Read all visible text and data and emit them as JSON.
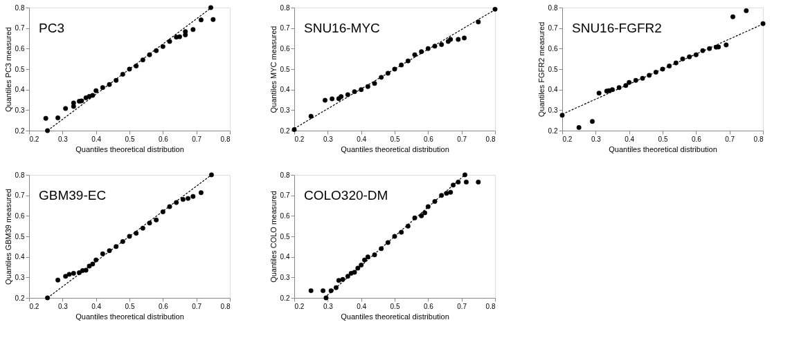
{
  "chart_data": [
    {
      "type": "scatter",
      "xlabel": "Quantiles theoretical distribution",
      "ylabel": "Quantiles PC3 measured",
      "annotations": [
        "PC3"
      ],
      "xlim": [
        0.2,
        0.8
      ],
      "ylim": [
        0.2,
        0.8
      ],
      "xticks": [
        0.2,
        0.3,
        0.4,
        0.5,
        0.6,
        0.7,
        0.8
      ],
      "yticks": [
        0.2,
        0.3,
        0.4,
        0.5,
        0.6,
        0.7,
        0.8
      ],
      "grid": false,
      "series": [
        {
          "marker": "circle",
          "color": "#000000",
          "x": [
            0.25,
            0.255,
            0.286,
            0.309,
            0.333,
            0.333,
            0.35,
            0.357,
            0.37,
            0.38,
            0.39,
            0.4,
            0.42,
            0.44,
            0.46,
            0.48,
            0.5,
            0.52,
            0.54,
            0.56,
            0.58,
            0.6,
            0.62,
            0.64,
            0.65,
            0.667,
            0.667,
            0.69,
            0.714,
            0.743,
            0.75
          ],
          "values": [
            0.26,
            0.2,
            0.262,
            0.308,
            0.318,
            0.335,
            0.343,
            0.345,
            0.36,
            0.367,
            0.372,
            0.395,
            0.41,
            0.425,
            0.445,
            0.475,
            0.5,
            0.515,
            0.545,
            0.57,
            0.59,
            0.61,
            0.635,
            0.656,
            0.658,
            0.667,
            0.683,
            0.693,
            0.74,
            0.8,
            0.742
          ]
        },
        {
          "type": "line",
          "line_style": "dashed",
          "color": "#000000",
          "x": [
            0.255,
            0.745
          ],
          "values": [
            0.2,
            0.8
          ]
        }
      ]
    },
    {
      "type": "scatter",
      "xlabel": "Quantiles theoretical distribution",
      "ylabel": "Quantiles MYC measured",
      "annotations": [
        "SNU16-MYC"
      ],
      "xlim": [
        0.2,
        0.8
      ],
      "ylim": [
        0.2,
        0.8
      ],
      "xticks": [
        0.2,
        0.3,
        0.4,
        0.5,
        0.6,
        0.7,
        0.8
      ],
      "yticks": [
        0.2,
        0.3,
        0.4,
        0.5,
        0.6,
        0.7,
        0.8
      ],
      "grid": false,
      "series": [
        {
          "marker": "circle",
          "color": "#000000",
          "x": [
            0.2,
            0.25,
            0.292,
            0.313,
            0.333,
            0.34,
            0.36,
            0.38,
            0.4,
            0.42,
            0.44,
            0.46,
            0.48,
            0.5,
            0.52,
            0.54,
            0.56,
            0.58,
            0.6,
            0.62,
            0.64,
            0.66,
            0.667,
            0.69,
            0.708,
            0.75,
            0.8
          ],
          "values": [
            0.205,
            0.27,
            0.348,
            0.355,
            0.356,
            0.366,
            0.375,
            0.39,
            0.4,
            0.415,
            0.43,
            0.46,
            0.48,
            0.5,
            0.52,
            0.54,
            0.57,
            0.585,
            0.6,
            0.612,
            0.62,
            0.635,
            0.645,
            0.645,
            0.652,
            0.73,
            0.792
          ]
        },
        {
          "type": "line",
          "line_style": "dashed",
          "color": "#000000",
          "x": [
            0.2,
            0.8
          ],
          "values": [
            0.21,
            0.79
          ]
        }
      ]
    },
    {
      "type": "scatter",
      "xlabel": "Quantiles theoretical distribution",
      "ylabel": "Quantiles FGFR2 measured",
      "annotations": [
        "SNU16-FGFR2"
      ],
      "xlim": [
        0.2,
        0.8
      ],
      "ylim": [
        0.2,
        0.8
      ],
      "xticks": [
        0.2,
        0.3,
        0.4,
        0.5,
        0.6,
        0.7,
        0.8
      ],
      "yticks": [
        0.2,
        0.3,
        0.4,
        0.5,
        0.6,
        0.7,
        0.8
      ],
      "grid": false,
      "series": [
        {
          "marker": "circle",
          "color": "#000000",
          "x": [
            0.2,
            0.25,
            0.29,
            0.31,
            0.333,
            0.34,
            0.35,
            0.37,
            0.39,
            0.4,
            0.42,
            0.44,
            0.46,
            0.48,
            0.5,
            0.52,
            0.54,
            0.56,
            0.58,
            0.6,
            0.62,
            0.64,
            0.66,
            0.667,
            0.69,
            0.71,
            0.75,
            0.8
          ],
          "values": [
            0.275,
            0.215,
            0.245,
            0.383,
            0.393,
            0.395,
            0.4,
            0.41,
            0.42,
            0.435,
            0.445,
            0.455,
            0.47,
            0.485,
            0.5,
            0.515,
            0.53,
            0.55,
            0.56,
            0.57,
            0.59,
            0.6,
            0.607,
            0.608,
            0.618,
            0.755,
            0.785,
            0.722
          ]
        },
        {
          "type": "line",
          "line_style": "dashed",
          "color": "#000000",
          "x": [
            0.2,
            0.8
          ],
          "values": [
            0.28,
            0.72
          ]
        }
      ]
    },
    {
      "type": "scatter",
      "xlabel": "Quantiles theoretical distribution",
      "ylabel": "Quantiles GBM39 measured",
      "annotations": [
        "GBM39-EC"
      ],
      "xlim": [
        0.2,
        0.8
      ],
      "ylim": [
        0.2,
        0.8
      ],
      "xticks": [
        0.2,
        0.3,
        0.4,
        0.5,
        0.6,
        0.7,
        0.8
      ],
      "yticks": [
        0.2,
        0.3,
        0.4,
        0.5,
        0.6,
        0.7,
        0.8
      ],
      "grid": false,
      "series": [
        {
          "marker": "circle",
          "color": "#000000",
          "x": [
            0.255,
            0.286,
            0.309,
            0.32,
            0.333,
            0.35,
            0.36,
            0.37,
            0.38,
            0.39,
            0.4,
            0.42,
            0.44,
            0.46,
            0.48,
            0.5,
            0.52,
            0.54,
            0.56,
            0.58,
            0.6,
            0.62,
            0.64,
            0.66,
            0.675,
            0.69,
            0.714,
            0.745
          ],
          "values": [
            0.2,
            0.287,
            0.305,
            0.315,
            0.32,
            0.323,
            0.333,
            0.335,
            0.355,
            0.365,
            0.385,
            0.415,
            0.43,
            0.45,
            0.475,
            0.5,
            0.515,
            0.54,
            0.565,
            0.58,
            0.62,
            0.645,
            0.665,
            0.68,
            0.685,
            0.695,
            0.713,
            0.8
          ]
        },
        {
          "type": "line",
          "line_style": "dashed",
          "color": "#000000",
          "x": [
            0.255,
            0.745
          ],
          "values": [
            0.2,
            0.8
          ]
        }
      ]
    },
    {
      "type": "scatter",
      "xlabel": "Quantiles theoretical distribution",
      "ylabel": "Quantiles COLO measured",
      "annotations": [
        "COLO320-DM"
      ],
      "xlim": [
        0.2,
        0.8
      ],
      "ylim": [
        0.2,
        0.8
      ],
      "xticks": [
        0.2,
        0.3,
        0.4,
        0.5,
        0.6,
        0.7,
        0.8
      ],
      "yticks": [
        0.2,
        0.3,
        0.4,
        0.5,
        0.6,
        0.7,
        0.8
      ],
      "grid": false,
      "series": [
        {
          "marker": "circle",
          "color": "#000000",
          "x": [
            0.25,
            0.286,
            0.295,
            0.31,
            0.325,
            0.333,
            0.345,
            0.36,
            0.37,
            0.38,
            0.39,
            0.4,
            0.41,
            0.42,
            0.44,
            0.46,
            0.48,
            0.5,
            0.52,
            0.54,
            0.56,
            0.58,
            0.59,
            0.6,
            0.62,
            0.64,
            0.655,
            0.667,
            0.675,
            0.69,
            0.71,
            0.714,
            0.75
          ],
          "values": [
            0.235,
            0.235,
            0.2,
            0.235,
            0.25,
            0.285,
            0.29,
            0.305,
            0.32,
            0.325,
            0.345,
            0.36,
            0.385,
            0.4,
            0.41,
            0.44,
            0.47,
            0.5,
            0.52,
            0.55,
            0.59,
            0.6,
            0.615,
            0.645,
            0.67,
            0.7,
            0.71,
            0.715,
            0.75,
            0.765,
            0.8,
            0.765,
            0.765
          ]
        },
        {
          "type": "line",
          "line_style": "dashed",
          "color": "#000000",
          "x": [
            0.29,
            0.71
          ],
          "values": [
            0.2,
            0.8
          ]
        }
      ]
    }
  ]
}
